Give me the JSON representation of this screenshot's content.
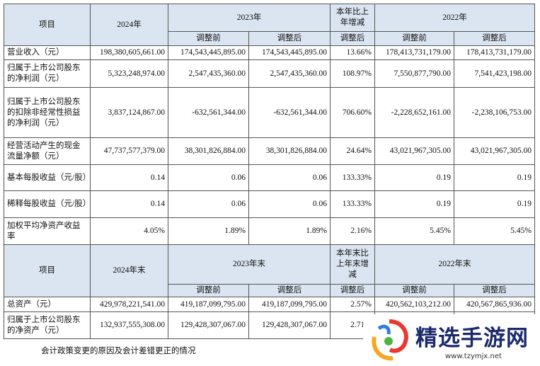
{
  "table1": {
    "header": [
      "项目",
      "2024年",
      "2023年",
      "本年比上年增减",
      "2022年"
    ],
    "subheader": [
      "调整前",
      "调整后",
      "调整后",
      "调整前",
      "调整后"
    ],
    "rows": [
      [
        "营业收入（元）",
        "198,380,605,661.00",
        "174,543,445,895.00",
        "174,543,445,895.00",
        "13.66%",
        "178,413,731,179.00",
        "178,413,731,179.00"
      ],
      [
        "归属于上市公司股东的净利润（元）",
        "5,323,248,974.00",
        "2,547,435,360.00",
        "2,547,435,360.00",
        "108.97%",
        "7,550,877,790.00",
        "7,541,423,198.00"
      ],
      [
        "归属于上市公司股东的扣除非经常性损益的净利润（元）",
        "3,837,124,867.00",
        "-632,561,344.00",
        "-632,561,344.00",
        "706.60%",
        "-2,228,652,161.00",
        "-2,238,106,753.00"
      ],
      [
        "经营活动产生的现金流量净额（元）",
        "47,737,577,379.00",
        "38,301,826,884.00",
        "38,301,826,884.00",
        "24.64%",
        "43,021,967,305.00",
        "43,021,967,305.00"
      ],
      [
        "基本每股收益（元/股）",
        "0.14",
        "0.06",
        "0.06",
        "133.33%",
        "0.19",
        "0.19"
      ],
      [
        "稀释每股收益（元/股）",
        "0.14",
        "0.06",
        "0.06",
        "133.33%",
        "0.19",
        "0.19"
      ],
      [
        "加权平均净资产收益率",
        "4.05%",
        "1.89%",
        "1.89%",
        "2.16%",
        "5.45%",
        "5.45%"
      ]
    ]
  },
  "table2": {
    "header": [
      "项目",
      "2024年末",
      "2023年末",
      "本年末比上年末增减",
      "2022年末"
    ],
    "subheader": [
      "调整前",
      "调整后",
      "调整后",
      "调整前",
      "调整后"
    ],
    "rows": [
      [
        "总资产（元）",
        "429,978,221,541.00",
        "419,187,099,795.00",
        "419,187,099,795.00",
        "2.57%",
        "420,562,103,212.00",
        "420,567,865,936.00"
      ],
      [
        "归属于上市公司股东的净资产（元）",
        "132,937,555,308.00",
        "129,428,307,067.00",
        "129,428,307,067.00",
        "2.71%",
        "",
        ""
      ]
    ]
  },
  "footnote": "会计政策变更的原因及会计差错更正的情况",
  "watermark": {
    "name": "精选手游网",
    "url": "www.tzymjx.net"
  }
}
